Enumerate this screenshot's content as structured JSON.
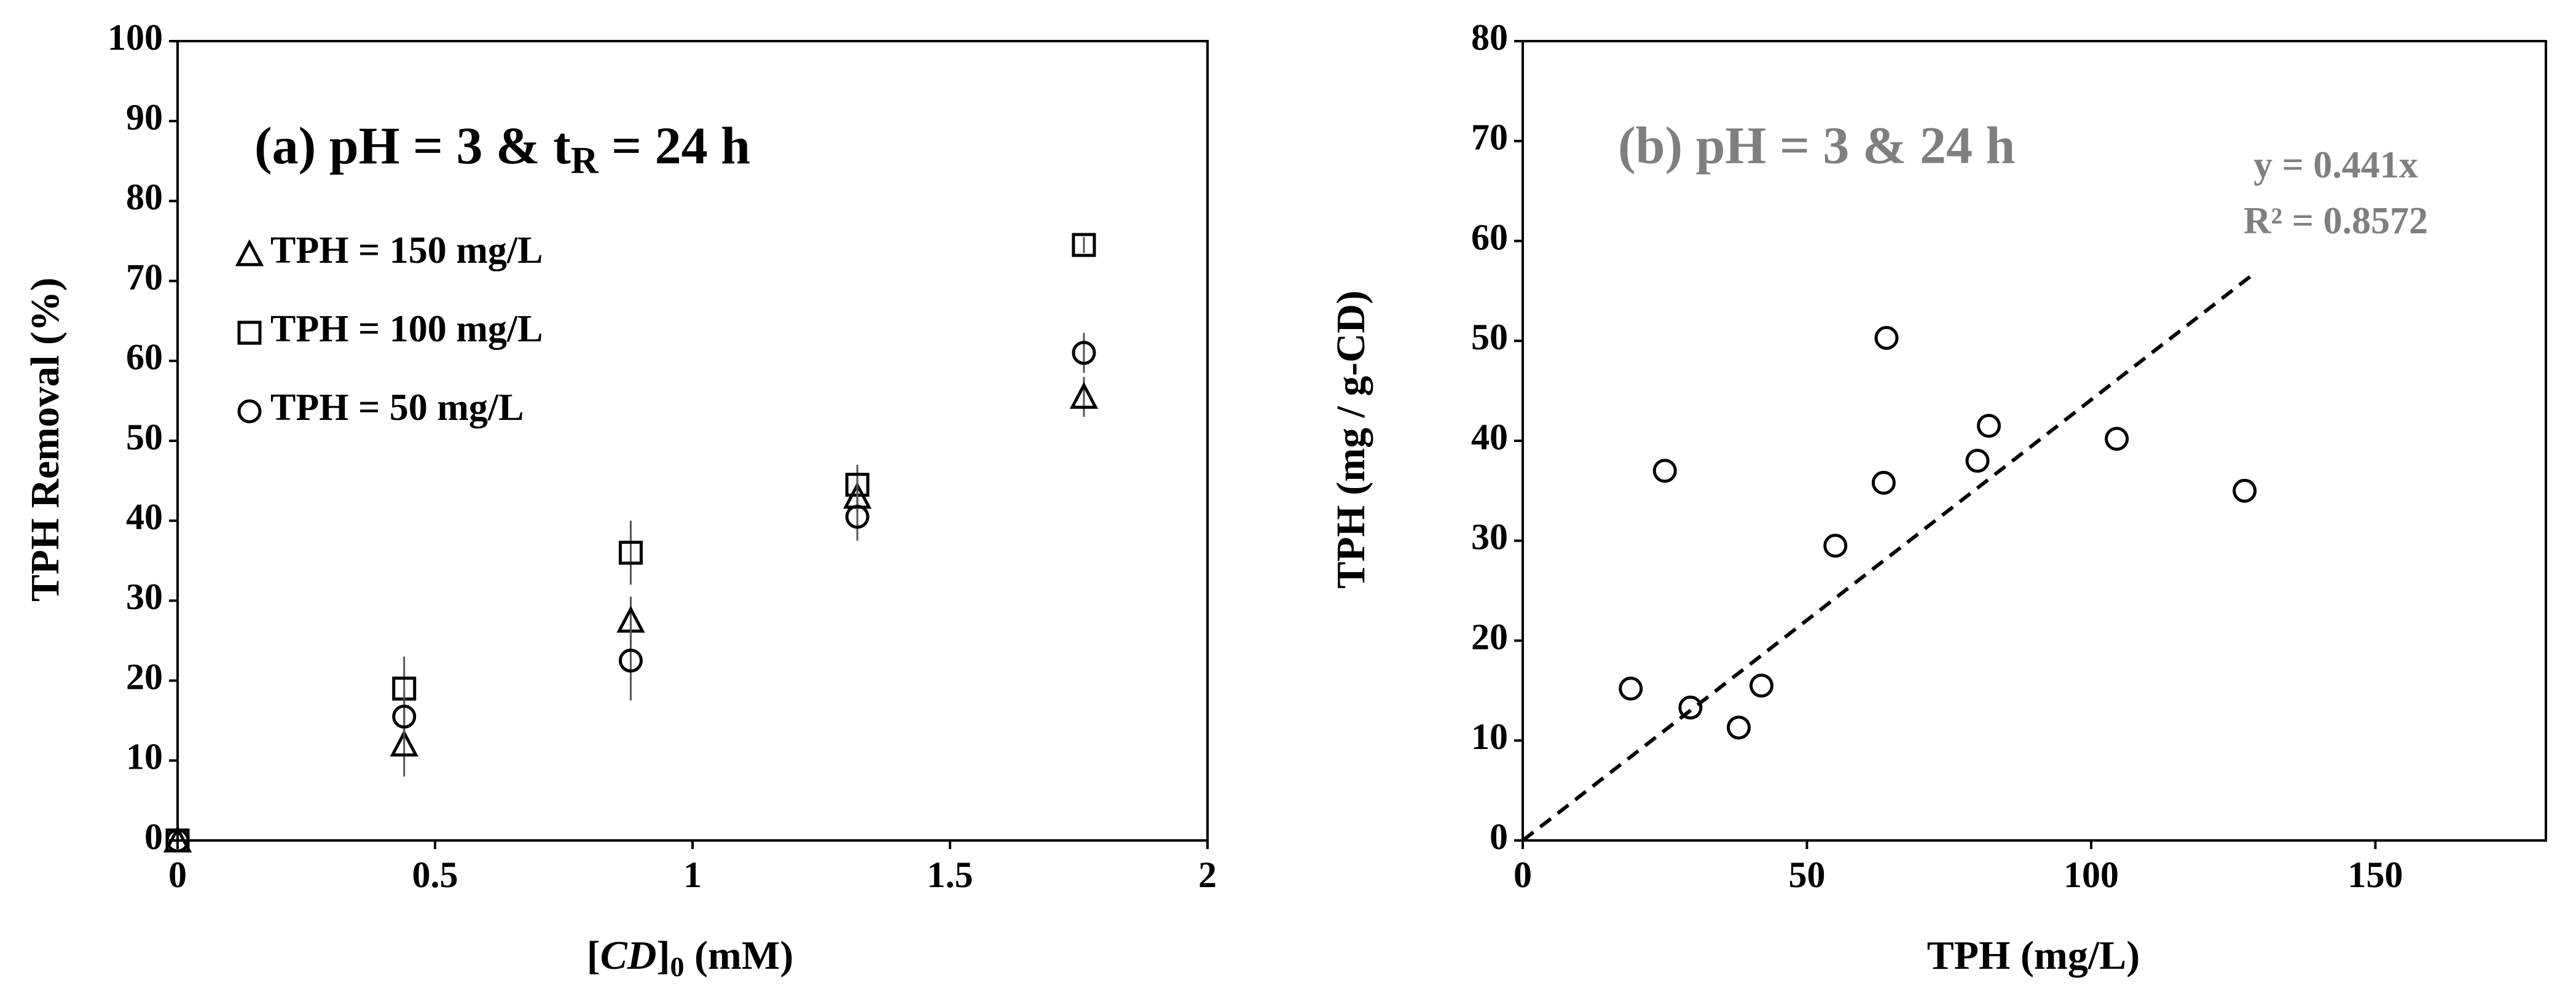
{
  "chart_data": [
    {
      "type": "scatter",
      "title": [
        "(a) pH = 3 & t",
        "R",
        " = 24 h"
      ],
      "xlabel": [
        "[",
        "CD",
        "]",
        "0",
        " (mM)"
      ],
      "ylabel": "TPH Removal (%)",
      "xlim": [
        0,
        2
      ],
      "xticks": [
        0,
        0.5,
        1,
        1.5,
        2
      ],
      "ylim": [
        0,
        100
      ],
      "yticks": [
        0,
        10,
        20,
        30,
        40,
        50,
        60,
        70,
        80,
        90,
        100
      ],
      "legend": true,
      "color": "#000000",
      "series": [
        {
          "name": "TPH = 150 mg/L",
          "marker": "triangle",
          "x": [
            0,
            0.44,
            0.88,
            1.32,
            1.76
          ],
          "values": [
            0,
            12,
            27.5,
            43,
            55.5
          ],
          "errors": [
            0,
            4,
            3,
            2,
            2.5
          ]
        },
        {
          "name": "TPH = 100 mg/L",
          "marker": "square",
          "x": [
            0,
            0.44,
            0.88,
            1.32,
            1.76
          ],
          "values": [
            0,
            19,
            36,
            44.5,
            74.5
          ],
          "errors": [
            0,
            4,
            4,
            2.5,
            1
          ]
        },
        {
          "name": "TPH = 50 mg/L",
          "marker": "circle",
          "x": [
            0,
            0.44,
            0.88,
            1.32,
            1.76
          ],
          "values": [
            0,
            15.5,
            22.5,
            40.5,
            61
          ],
          "errors": [
            0,
            3,
            5,
            3,
            2.5
          ]
        }
      ]
    },
    {
      "type": "scatter",
      "title": "(b) pH = 3 & 24 h",
      "title_color": "#7f7f7f",
      "xlabel": "TPH (mg/L)",
      "ylabel": "TPH (mg / g-CD)",
      "xlim": [
        0,
        180
      ],
      "xticks": [
        0,
        50,
        100,
        150
      ],
      "ylim": [
        0,
        80
      ],
      "yticks": [
        0,
        10,
        20,
        30,
        40,
        50,
        60,
        70,
        80
      ],
      "legend": false,
      "color": "#000000",
      "series": [
        {
          "marker": "circle",
          "x": [
            19,
            25,
            29.5,
            38,
            42,
            55,
            63.5,
            64,
            80,
            82,
            104.5,
            127
          ],
          "values": [
            15.2,
            37,
            13.3,
            11.3,
            15.5,
            29.5,
            35.8,
            50.3,
            38,
            41.5,
            40.2,
            35
          ]
        }
      ],
      "trendline": {
        "label": "y = 0.441x",
        "r2_label": "R² = 0.8572",
        "slope": 0.441,
        "x_end": 128
      }
    }
  ]
}
